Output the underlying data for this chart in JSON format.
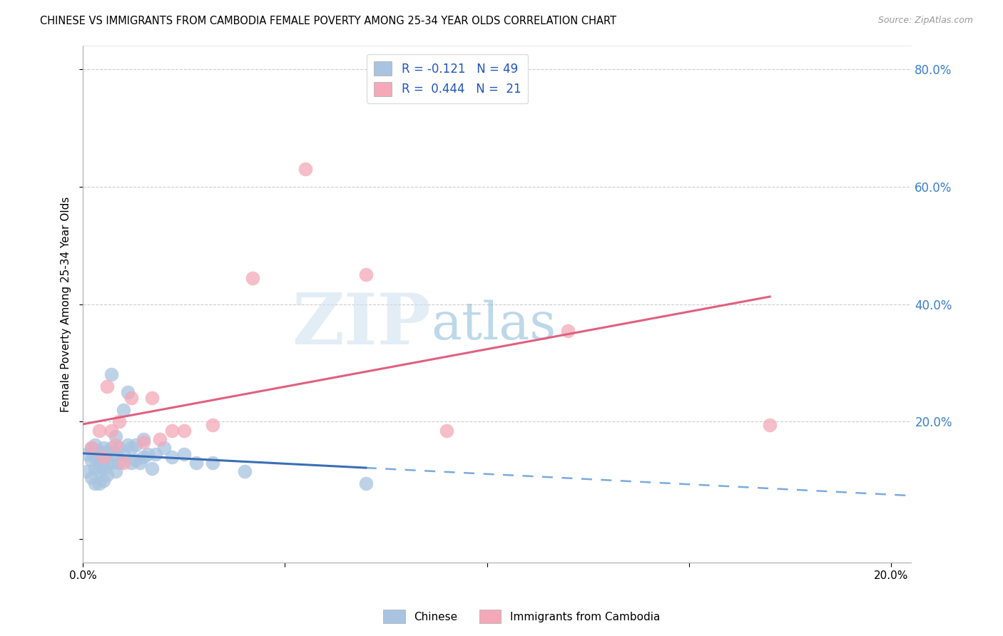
{
  "title": "CHINESE VS IMMIGRANTS FROM CAMBODIA FEMALE POVERTY AMONG 25-34 YEAR OLDS CORRELATION CHART",
  "source": "Source: ZipAtlas.com",
  "ylabel": "Female Poverty Among 25-34 Year Olds",
  "xlim": [
    0.0,
    0.205
  ],
  "ylim": [
    -0.04,
    0.84
  ],
  "chinese_color": "#a8c4e0",
  "cambodia_color": "#f4a8b8",
  "chinese_R": -0.121,
  "chinese_N": 49,
  "cambodia_R": 0.444,
  "cambodia_N": 21,
  "watermark_zip": "ZIP",
  "watermark_atlas": "atlas",
  "watermark_color_zip": "#c5d8ee",
  "watermark_color_atlas": "#8ab8d8",
  "chinese_x": [
    0.001,
    0.001,
    0.002,
    0.002,
    0.002,
    0.003,
    0.003,
    0.003,
    0.003,
    0.004,
    0.004,
    0.004,
    0.004,
    0.005,
    0.005,
    0.005,
    0.005,
    0.006,
    0.006,
    0.006,
    0.007,
    0.007,
    0.007,
    0.008,
    0.008,
    0.008,
    0.009,
    0.009,
    0.01,
    0.01,
    0.011,
    0.011,
    0.012,
    0.012,
    0.013,
    0.013,
    0.014,
    0.015,
    0.015,
    0.016,
    0.017,
    0.018,
    0.02,
    0.022,
    0.025,
    0.028,
    0.032,
    0.04,
    0.07
  ],
  "chinese_y": [
    0.145,
    0.115,
    0.155,
    0.135,
    0.105,
    0.16,
    0.14,
    0.12,
    0.095,
    0.15,
    0.13,
    0.115,
    0.095,
    0.155,
    0.135,
    0.12,
    0.1,
    0.15,
    0.13,
    0.11,
    0.28,
    0.155,
    0.13,
    0.175,
    0.145,
    0.115,
    0.155,
    0.13,
    0.22,
    0.145,
    0.25,
    0.16,
    0.155,
    0.13,
    0.16,
    0.135,
    0.13,
    0.17,
    0.14,
    0.145,
    0.12,
    0.145,
    0.155,
    0.14,
    0.145,
    0.13,
    0.13,
    0.115,
    0.095
  ],
  "cambodia_x": [
    0.002,
    0.004,
    0.005,
    0.006,
    0.007,
    0.008,
    0.009,
    0.01,
    0.012,
    0.015,
    0.017,
    0.019,
    0.022,
    0.025,
    0.032,
    0.042,
    0.055,
    0.07,
    0.09,
    0.12,
    0.17
  ],
  "cambodia_y": [
    0.155,
    0.185,
    0.14,
    0.26,
    0.185,
    0.16,
    0.2,
    0.13,
    0.24,
    0.165,
    0.24,
    0.17,
    0.185,
    0.185,
    0.195,
    0.445,
    0.63,
    0.45,
    0.185,
    0.355,
    0.195
  ],
  "blue_line_solid_end": 0.07,
  "legend_label_chinese": "R = -0.121   N = 49",
  "legend_label_cambodia": "R =  0.444   N =  21"
}
